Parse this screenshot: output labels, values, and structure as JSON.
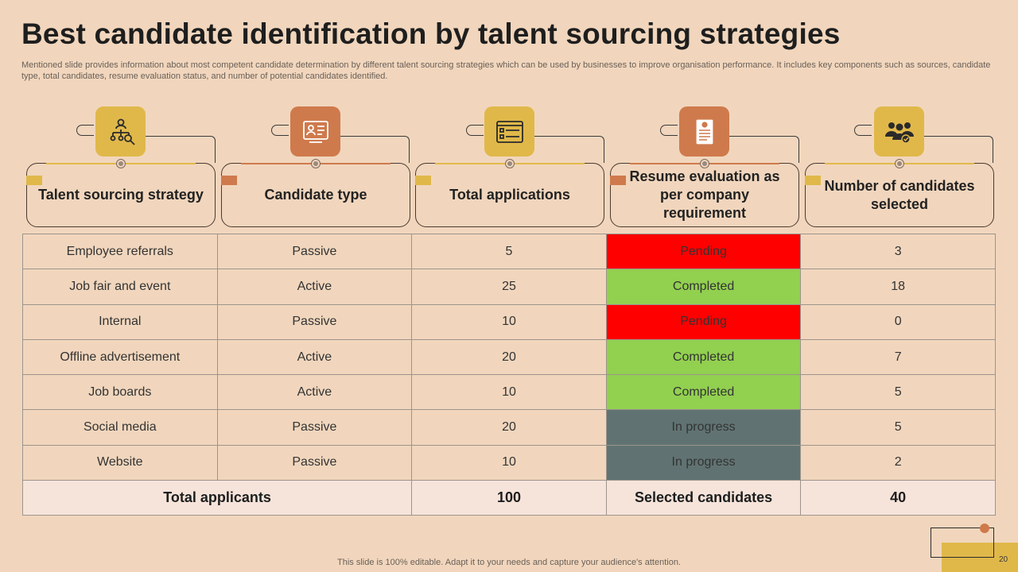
{
  "title": "Best candidate identification by talent sourcing strategies",
  "subtitle": "Mentioned slide provides information about most competent candidate determination by different talent sourcing strategies which can be used by businesses to improve organisation performance. It includes key components such as sources, candidate type, total candidates, resume evaluation status, and number of potential candidates identified.",
  "headers": [
    {
      "label": "Talent sourcing strategy",
      "icon": "hierarchy-search-icon",
      "color": "#e0b84a"
    },
    {
      "label": "Candidate type",
      "icon": "candidate-profile-icon",
      "color": "#cf7a4c"
    },
    {
      "label": "Total applications",
      "icon": "application-form-icon",
      "color": "#e0b84a"
    },
    {
      "label": "Resume evaluation as per company requirement",
      "icon": "resume-document-icon",
      "color": "#cf7a4c"
    },
    {
      "label": "Number of candidates selected",
      "icon": "group-selected-icon",
      "color": "#e0b84a"
    }
  ],
  "rows": [
    {
      "strategy": "Employee referrals",
      "type": "Passive",
      "applications": "5",
      "status": "Pending",
      "selected": "3"
    },
    {
      "strategy": "Job fair and event",
      "type": "Active",
      "applications": "25",
      "status": "Completed",
      "selected": "18"
    },
    {
      "strategy": "Internal",
      "type": "Passive",
      "applications": "10",
      "status": "Pending",
      "selected": "0"
    },
    {
      "strategy": "Offline advertisement",
      "type": "Active",
      "applications": "20",
      "status": "Completed",
      "selected": "7"
    },
    {
      "strategy": "Job boards",
      "type": "Active",
      "applications": "10",
      "status": "Completed",
      "selected": "5"
    },
    {
      "strategy": "Social media",
      "type": "Passive",
      "applications": "20",
      "status": "In progress",
      "selected": "5"
    },
    {
      "strategy": "Website",
      "type": "Passive",
      "applications": "10",
      "status": "In progress",
      "selected": "2"
    }
  ],
  "totals": {
    "applicants_label": "Total applicants",
    "applicants_value": "100",
    "selected_label": "Selected candidates",
    "selected_value": "40"
  },
  "status_colors": {
    "Pending": "#ff0000",
    "Completed": "#92d050",
    "In progress": "#607372"
  },
  "footer": "This slide is 100% editable. Adapt it to your needs and capture your audience's attention.",
  "page_number": "20"
}
